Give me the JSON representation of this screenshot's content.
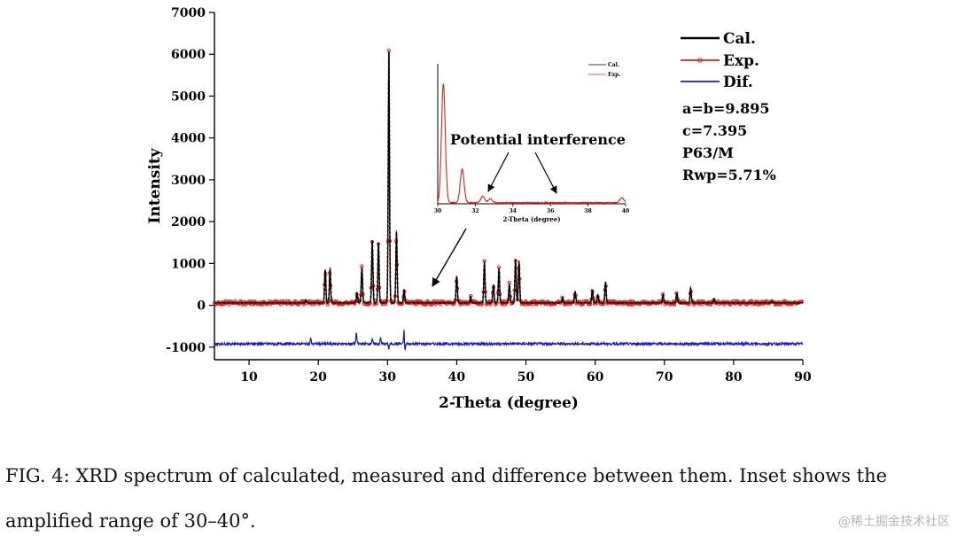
{
  "chart_data": [
    {
      "type": "line",
      "title": "",
      "xlabel": "2-Theta (degree)",
      "ylabel": "Intensity",
      "xlim": [
        5,
        90
      ],
      "ylim": [
        -1300,
        7000
      ],
      "xticks": [
        10,
        20,
        30,
        40,
        50,
        60,
        70,
        80,
        90
      ],
      "yticks": [
        -1000,
        0,
        1000,
        2000,
        3000,
        4000,
        5000,
        6000,
        7000
      ],
      "legend_position": "top-right",
      "grid": false,
      "colors": {
        "cal": "#000000",
        "exp": "#e02020",
        "dif": "#1a1acc"
      },
      "series": [
        {
          "name": "Cal.",
          "style": "line",
          "baseline": 60,
          "peaks": [
            [
              18.2,
              120
            ],
            [
              21.0,
              850
            ],
            [
              21.7,
              870
            ],
            [
              25.6,
              300
            ],
            [
              26.3,
              900
            ],
            [
              27.8,
              1550
            ],
            [
              28.7,
              1500
            ],
            [
              30.2,
              6050
            ],
            [
              31.3,
              1750
            ],
            [
              32.4,
              380
            ],
            [
              40.0,
              700
            ],
            [
              42.0,
              200
            ],
            [
              44.0,
              1050
            ],
            [
              45.3,
              500
            ],
            [
              46.1,
              880
            ],
            [
              47.6,
              500
            ],
            [
              48.5,
              1100
            ],
            [
              49.0,
              1050
            ],
            [
              55.3,
              180
            ],
            [
              57.1,
              330
            ],
            [
              59.6,
              380
            ],
            [
              60.4,
              250
            ],
            [
              61.5,
              560
            ],
            [
              69.8,
              260
            ],
            [
              71.8,
              300
            ],
            [
              73.8,
              420
            ],
            [
              77.2,
              150
            ],
            [
              85.5,
              100
            ]
          ]
        },
        {
          "name": "Exp.",
          "style": "markers",
          "baseline": 60,
          "peaks": [
            [
              18.2,
              120
            ],
            [
              21.0,
              850
            ],
            [
              21.7,
              870
            ],
            [
              25.6,
              300
            ],
            [
              26.3,
              900
            ],
            [
              27.8,
              1550
            ],
            [
              28.7,
              1500
            ],
            [
              30.2,
              6050
            ],
            [
              31.3,
              1750
            ],
            [
              32.4,
              380
            ],
            [
              40.0,
              700
            ],
            [
              42.0,
              200
            ],
            [
              44.0,
              1050
            ],
            [
              45.3,
              500
            ],
            [
              46.1,
              880
            ],
            [
              47.6,
              500
            ],
            [
              48.5,
              1100
            ],
            [
              49.0,
              1050
            ],
            [
              55.3,
              180
            ],
            [
              57.1,
              330
            ],
            [
              59.6,
              380
            ],
            [
              60.4,
              250
            ],
            [
              61.5,
              560
            ],
            [
              69.8,
              260
            ],
            [
              71.8,
              300
            ],
            [
              73.8,
              420
            ],
            [
              77.2,
              150
            ],
            [
              85.5,
              100
            ]
          ]
        },
        {
          "name": "Dif.",
          "style": "line",
          "baseline": -920,
          "spikes": [
            [
              18.9,
              130
            ],
            [
              25.5,
              280
            ],
            [
              27.8,
              120
            ],
            [
              29.0,
              140
            ],
            [
              30.2,
              -120
            ],
            [
              32.4,
              400
            ],
            [
              32.5,
              -250
            ]
          ]
        }
      ],
      "annotations": [
        {
          "text": "a=b=9.895",
          "position": "right"
        },
        {
          "text": "c=7.395",
          "position": "right"
        },
        {
          "text": "P63/M",
          "position": "right"
        },
        {
          "text": "Rwp=5.71%",
          "position": "right"
        },
        {
          "text": "Potential interference",
          "position": "above-inset"
        }
      ],
      "arrow_to": [
        35.8,
        150
      ]
    },
    {
      "type": "line",
      "title": "",
      "xlabel": "2-Theta (degree)",
      "ylabel": "",
      "xlim": [
        30,
        40
      ],
      "ylim": [
        0,
        7000
      ],
      "xticks": [
        30,
        32,
        34,
        36,
        38,
        40
      ],
      "legend_position": "top-left",
      "series": [
        {
          "name": "Cal.",
          "style": "line"
        },
        {
          "name": "Exp.",
          "style": "line",
          "peaks": [
            [
              30.3,
              6000
            ],
            [
              31.3,
              1750
            ],
            [
              32.4,
              380
            ],
            [
              32.8,
              250
            ],
            [
              39.8,
              300
            ]
          ],
          "baseline": 60
        }
      ]
    }
  ],
  "caption": {
    "line1": "FIG. 4:  XRD spectrum of calculated, measured and difference between them.  Inset shows the",
    "line2": "amplified range of 30–40°."
  },
  "watermark": "@稀土掘金技术社区"
}
